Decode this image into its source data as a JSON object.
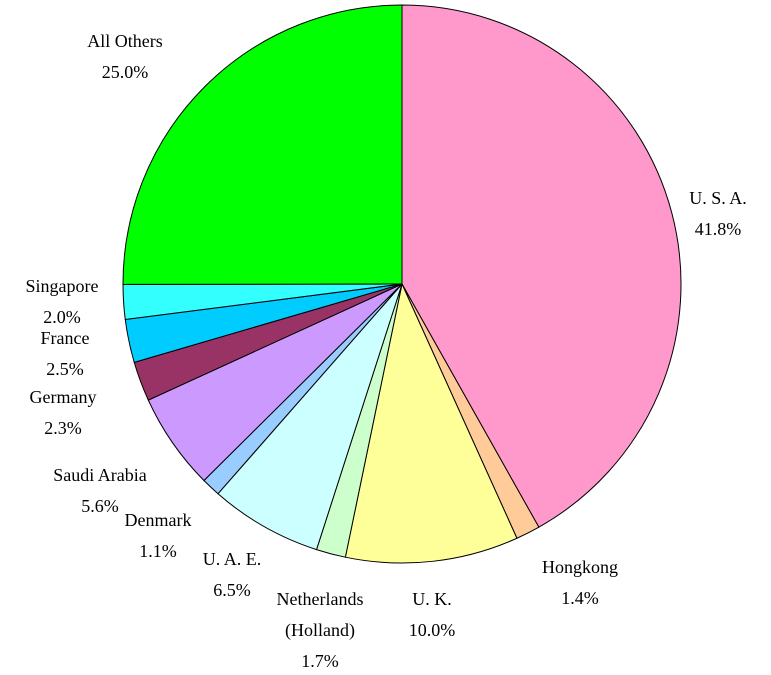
{
  "chart_data": {
    "type": "pie",
    "categories": [
      "U. S. A.",
      "Hongkong",
      "U. K.",
      "Netherlands (Holland)",
      "U. A. E.",
      "Denmark",
      "Saudi Arabia",
      "Germany",
      "France",
      "Singapore",
      "All Others"
    ],
    "values": [
      41.8,
      1.4,
      10.0,
      1.7,
      6.5,
      1.1,
      5.6,
      2.3,
      2.5,
      2.0,
      25.0
    ],
    "value_labels": [
      "41.8%",
      "1.4%",
      "10.0%",
      "1.7%",
      "6.5%",
      "1.1%",
      "5.6%",
      "2.3%",
      "2.5%",
      "2.0%",
      "25.0%"
    ],
    "colors": [
      "#ff99cc",
      "#ffcc99",
      "#ffff99",
      "#ccffcc",
      "#ccffff",
      "#99ccff",
      "#cc99ff",
      "#993366",
      "#00ccff",
      "#33ffff",
      "#00ff00"
    ]
  }
}
